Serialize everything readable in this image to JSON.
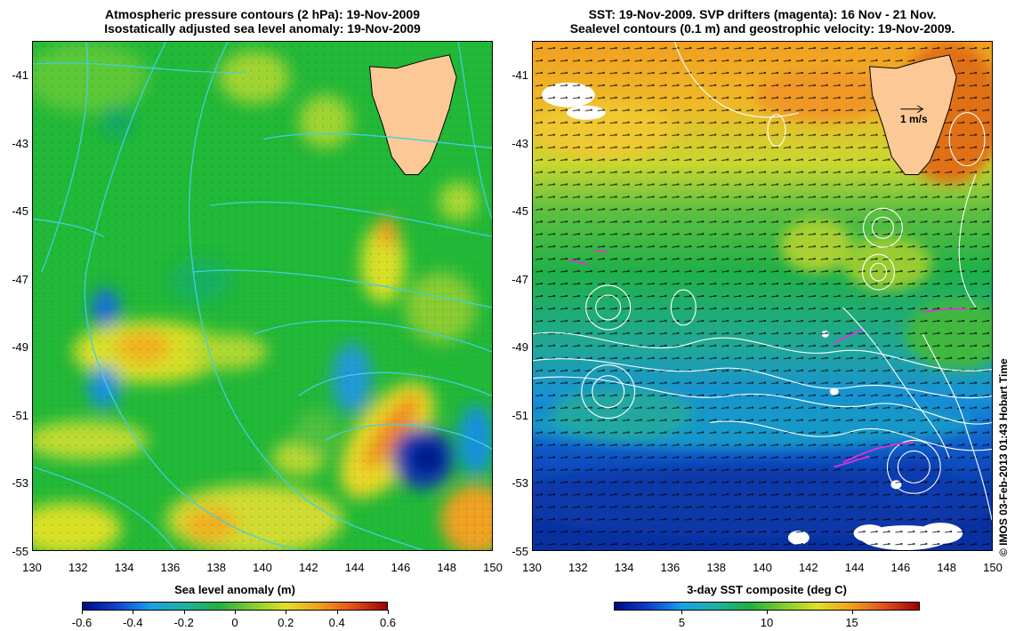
{
  "left_panel": {
    "title_line1": "Atmospheric pressure contours (2 hPa): 19-Nov-2009",
    "title_line2": "Isostatically adjusted sea level anomaly: 19-Nov-2009",
    "colorbar_title": "Sea level anomaly (m)",
    "colorbar_ticks": [
      "-0.6",
      "-0.4",
      "-0.2",
      "0",
      "0.2",
      "0.4",
      "0.6"
    ],
    "colorbar_range": [
      -0.6,
      0.6
    ],
    "x_ticks": [
      "130",
      "132",
      "134",
      "136",
      "138",
      "140",
      "142",
      "144",
      "146",
      "148",
      "150"
    ],
    "y_ticks": [
      "-41",
      "-43",
      "-45",
      "-47",
      "-49",
      "-51",
      "-53",
      "-55"
    ],
    "contour_color": "#40d0e0",
    "land_color": "#fcc896"
  },
  "right_panel": {
    "title_line1": "SST: 19-Nov-2009. SVP drifters (magenta): 16 Nov - 21 Nov.",
    "title_line2": "Sealevel contours (0.1 m) and geostrophic velocity: 19-Nov-2009.",
    "colorbar_title": "3-day SST composite (deg C)",
    "colorbar_ticks": [
      "5",
      "10",
      "15"
    ],
    "colorbar_range": [
      1,
      19
    ],
    "x_ticks": [
      "130",
      "132",
      "134",
      "136",
      "138",
      "140",
      "142",
      "144",
      "146",
      "148",
      "150"
    ],
    "y_ticks": [
      "-41",
      "-43",
      "-45",
      "-47",
      "-49",
      "-51",
      "-53",
      "-55"
    ],
    "scale_label": "1 m/s",
    "contour_color": "#ffffff",
    "drifter_color": "#e030e0",
    "land_color": "#fcc896"
  },
  "map_extent": {
    "lon": [
      130,
      150
    ],
    "lat": [
      -55,
      -40
    ]
  },
  "credit": "© IMOS 03-Feb-2013 01:43 Hobart Time"
}
